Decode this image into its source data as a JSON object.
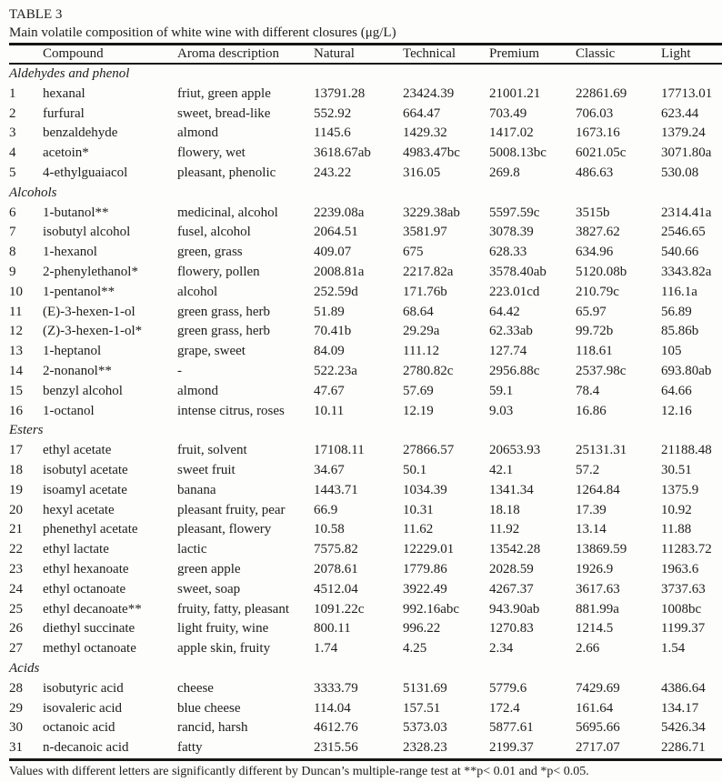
{
  "page": {
    "title_label": "TABLE 3",
    "caption": "Main volatile composition of white wine with different closures (μg/L)",
    "footnote": "Values with different letters are significantly different by Duncan’s multiple-range test at **p< 0.01 and *p< 0.05."
  },
  "table": {
    "columns": [
      "Compound",
      "Aroma description",
      "Natural",
      "Technical",
      "Premium",
      "Classic",
      "Light"
    ],
    "sections": [
      {
        "name": "Aldehydes and phenol",
        "rows": [
          {
            "n": "1",
            "compound": "hexanal",
            "aroma": "friut, green apple",
            "values": [
              "13791.28",
              "23424.39",
              "21001.21",
              "22861.69",
              "17713.01"
            ]
          },
          {
            "n": "2",
            "compound": "furfural",
            "aroma": "sweet, bread-like",
            "values": [
              "552.92",
              "664.47",
              "703.49",
              "706.03",
              "623.44"
            ]
          },
          {
            "n": "3",
            "compound": "benzaldehyde",
            "aroma": "almond",
            "values": [
              "1145.6",
              "1429.32",
              "1417.02",
              "1673.16",
              "1379.24"
            ]
          },
          {
            "n": "4",
            "compound": "acetoin*",
            "aroma": "flowery, wet",
            "values": [
              "3618.67ab",
              "4983.47bc",
              "5008.13bc",
              "6021.05c",
              "3071.80a"
            ]
          },
          {
            "n": "5",
            "compound": "4-ethylguaiacol",
            "aroma": "pleasant, phenolic",
            "values": [
              "243.22",
              "316.05",
              "269.8",
              "486.63",
              "530.08"
            ]
          }
        ]
      },
      {
        "name": "Alcohols",
        "rows": [
          {
            "n": "6",
            "compound": "1-butanol**",
            "aroma": "medicinal, alcohol",
            "values": [
              "2239.08a",
              "3229.38ab",
              "5597.59c",
              "3515b",
              "2314.41a"
            ]
          },
          {
            "n": "7",
            "compound": "isobutyl alcohol",
            "aroma": "fusel, alcohol",
            "values": [
              "2064.51",
              "3581.97",
              "3078.39",
              "3827.62",
              "2546.65"
            ]
          },
          {
            "n": "8",
            "compound": "1-hexanol",
            "aroma": "green, grass",
            "values": [
              "409.07",
              "675",
              "628.33",
              "634.96",
              "540.66"
            ]
          },
          {
            "n": "9",
            "compound": "2-phenylethanol*",
            "aroma": "flowery, pollen",
            "values": [
              "2008.81a",
              "2217.82a",
              "3578.40ab",
              "5120.08b",
              "3343.82a"
            ]
          },
          {
            "n": "10",
            "compound": "1-pentanol**",
            "aroma": "alcohol",
            "values": [
              "252.59d",
              "171.76b",
              "223.01cd",
              "210.79c",
              "116.1a"
            ]
          },
          {
            "n": "11",
            "compound": "(E)-3-hexen-1-ol",
            "aroma": "green grass, herb",
            "values": [
              "51.89",
              "68.64",
              "64.42",
              "65.97",
              "56.89"
            ]
          },
          {
            "n": "12",
            "compound": "(Z)-3-hexen-1-ol*",
            "aroma": "green grass, herb",
            "values": [
              "70.41b",
              "29.29a",
              "62.33ab",
              "99.72b",
              "85.86b"
            ]
          },
          {
            "n": "13",
            "compound": "1-heptanol",
            "aroma": "grape, sweet",
            "values": [
              "84.09",
              "111.12",
              "127.74",
              "118.61",
              "105"
            ]
          },
          {
            "n": "14",
            "compound": "2-nonanol**",
            "aroma": "-",
            "values": [
              "522.23a",
              "2780.82c",
              "2956.88c",
              "2537.98c",
              "693.80ab"
            ]
          },
          {
            "n": "15",
            "compound": "benzyl alcohol",
            "aroma": "almond",
            "values": [
              "47.67",
              "57.69",
              "59.1",
              "78.4",
              "64.66"
            ]
          },
          {
            "n": "16",
            "compound": "1-octanol",
            "aroma": "intense citrus, roses",
            "values": [
              "10.11",
              "12.19",
              "9.03",
              "16.86",
              "12.16"
            ]
          }
        ]
      },
      {
        "name": "Esters",
        "rows": [
          {
            "n": "17",
            "compound": "ethyl acetate",
            "aroma": "fruit, solvent",
            "values": [
              "17108.11",
              "27866.57",
              "20653.93",
              "25131.31",
              "21188.48"
            ]
          },
          {
            "n": "18",
            "compound": "isobutyl acetate",
            "aroma": "sweet fruit",
            "values": [
              "34.67",
              "50.1",
              "42.1",
              "57.2",
              "30.51"
            ]
          },
          {
            "n": "19",
            "compound": "isoamyl acetate",
            "aroma": "banana",
            "values": [
              "1443.71",
              "1034.39",
              "1341.34",
              "1264.84",
              "1375.9"
            ]
          },
          {
            "n": "20",
            "compound": "hexyl acetate",
            "aroma": "pleasant fruity, pear",
            "values": [
              "66.9",
              "10.31",
              "18.18",
              "17.39",
              "10.92"
            ]
          },
          {
            "n": "21",
            "compound": "phenethyl acetate",
            "aroma": "pleasant, flowery",
            "values": [
              "10.58",
              "11.62",
              "11.92",
              "13.14",
              "11.88"
            ]
          },
          {
            "n": "22",
            "compound": "ethyl lactate",
            "aroma": "lactic",
            "values": [
              "7575.82",
              "12229.01",
              "13542.28",
              "13869.59",
              "11283.72"
            ]
          },
          {
            "n": "23",
            "compound": "ethyl hexanoate",
            "aroma": "green apple",
            "values": [
              "2078.61",
              "1779.86",
              "2028.59",
              "1926.9",
              "1963.6"
            ]
          },
          {
            "n": "24",
            "compound": "ethyl octanoate",
            "aroma": "sweet, soap",
            "values": [
              "4512.04",
              "3922.49",
              "4267.37",
              "3617.63",
              "3737.63"
            ]
          },
          {
            "n": "25",
            "compound": "ethyl decanoate**",
            "aroma": "fruity, fatty, pleasant",
            "values": [
              "1091.22c",
              "992.16abc",
              "943.90ab",
              "881.99a",
              "1008bc"
            ]
          },
          {
            "n": "26",
            "compound": "diethyl succinate",
            "aroma": "light fruity, wine",
            "values": [
              "800.11",
              "996.22",
              "1270.83",
              "1214.5",
              "1199.37"
            ]
          },
          {
            "n": "27",
            "compound": "methyl octanoate",
            "aroma": "apple skin, fruity",
            "values": [
              "1.74",
              "4.25",
              "2.34",
              "2.66",
              "1.54"
            ]
          }
        ]
      },
      {
        "name": "Acids",
        "rows": [
          {
            "n": "28",
            "compound": "isobutyric acid",
            "aroma": "cheese",
            "values": [
              "3333.79",
              "5131.69",
              "5779.6",
              "7429.69",
              "4386.64"
            ]
          },
          {
            "n": "29",
            "compound": "isovaleric acid",
            "aroma": "blue cheese",
            "values": [
              "114.04",
              "157.51",
              "172.4",
              "161.64",
              "134.17"
            ]
          },
          {
            "n": "30",
            "compound": "octanoic acid",
            "aroma": "rancid, harsh",
            "values": [
              "4612.76",
              "5373.03",
              "5877.61",
              "5695.66",
              "5426.34"
            ]
          },
          {
            "n": "31",
            "compound": "n-decanoic acid",
            "aroma": "fatty",
            "values": [
              "2315.56",
              "2328.23",
              "2199.37",
              "2717.07",
              "2286.71"
            ]
          }
        ]
      }
    ]
  }
}
